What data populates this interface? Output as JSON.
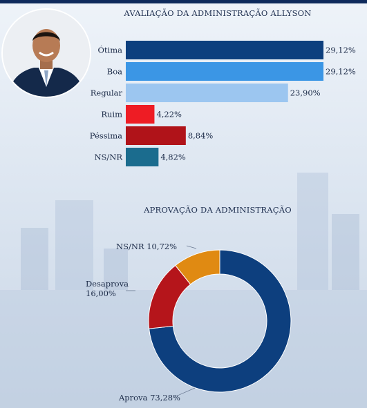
{
  "chart_data": [
    {
      "type": "bar",
      "title": "AVALIAÇÃO DA ADMINISTRAÇÃO ALLYSON",
      "categories": [
        "Ótima",
        "Boa",
        "Regular",
        "Ruim",
        "Péssima",
        "NS/NR"
      ],
      "values": [
        29.12,
        29.12,
        23.9,
        4.22,
        8.84,
        4.82
      ],
      "value_labels": [
        "29,12%",
        "29,12%",
        "23,90%",
        "4,22%",
        "8,84%",
        "4,82%"
      ],
      "colors": [
        "#0d3f7e",
        "#3b96e5",
        "#9cc6f0",
        "#ee1c24",
        "#b01319",
        "#1b6c8e"
      ],
      "xlim": [
        0,
        29.12
      ]
    },
    {
      "type": "pie",
      "title": "APROVAÇÃO DA ADMINISTRAÇÃO",
      "categories": [
        "Aprova",
        "Desaprova",
        "NS/NR"
      ],
      "values": [
        73.28,
        16.0,
        10.72
      ],
      "value_labels": [
        "73,28%",
        "16,00%",
        "10,72%"
      ],
      "colors": [
        "#0d3f7e",
        "#b5151b",
        "#e08a12"
      ]
    }
  ],
  "photo": {
    "icon": "person-portrait-icon"
  }
}
